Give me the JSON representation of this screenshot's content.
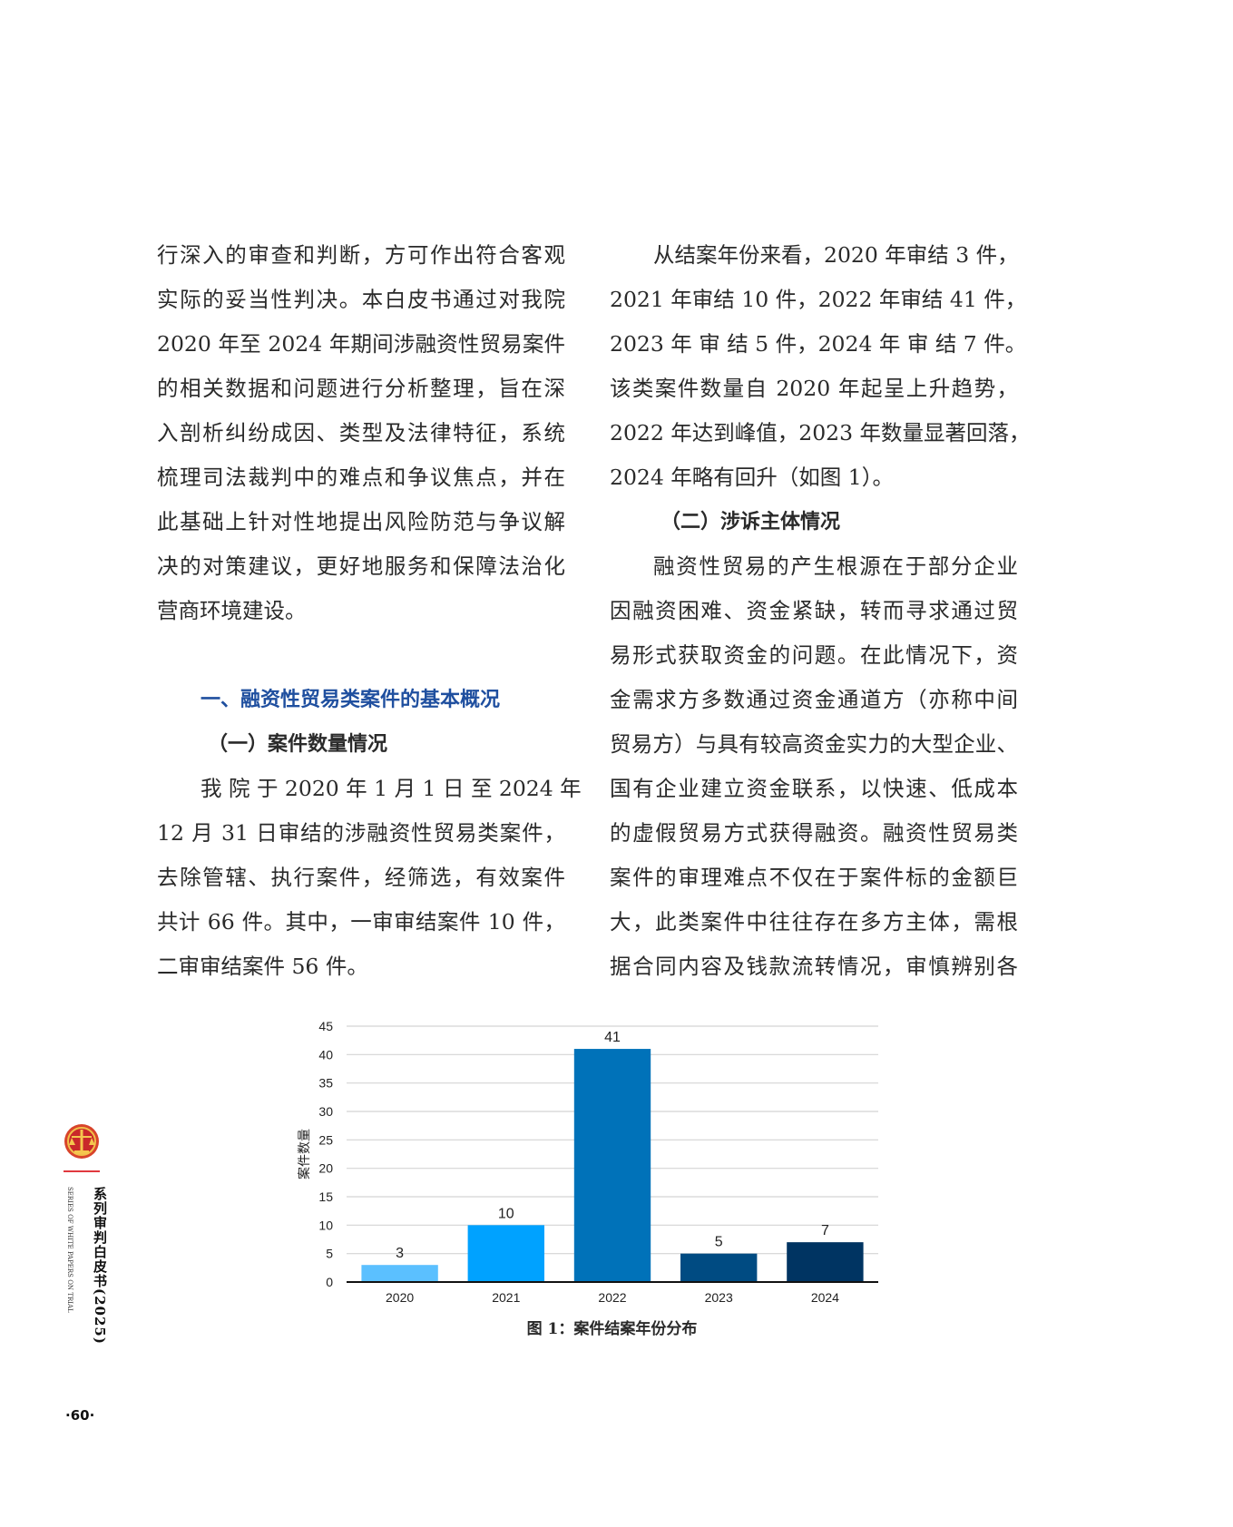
{
  "left_column": {
    "intro_lines": [
      "行深入的审查和判断，方可作出符合客观",
      "实际的妥当性判决。本白皮书通过对我院",
      "2020 年至 2024 年期间涉融资性贸易案件",
      "的相关数据和问题进行分析整理，旨在深",
      "入剖析纠纷成因、类型及法律特征，系统",
      "梳理司法裁判中的难点和争议焦点，并在",
      "此基础上针对性地提出风险防范与争议解",
      "决的对策建议，更好地服务和保障法治化",
      "营商环境建设。"
    ],
    "section_heading": "一、融资性贸易类案件的基本概况",
    "subheading": "（一）案件数量情况",
    "para_lines": [
      "我 院 于 2020 年 1 月 1 日 至 2024 年",
      "12 月 31 日审结的涉融资性贸易类案件，",
      "去除管辖、执行案件，经筛选，有效案件",
      "共计 66 件。其中，一审审结案件 10 件，",
      "二审审结案件 56 件。"
    ]
  },
  "right_column": {
    "para1_lines": [
      "从结案年份来看，2020 年审结 3 件，",
      "2021 年审结 10 件，2022 年审结 41 件，",
      "2023 年 审 结 5 件，2024 年 审 结 7 件。",
      "该类案件数量自 2020 年起呈上升趋势，",
      "2022 年达到峰值，2023 年数量显著回落，",
      "2024 年略有回升（如图 1）。"
    ],
    "subheading": "（二）涉诉主体情况",
    "para2_lines": [
      "融资性贸易的产生根源在于部分企业",
      "因融资困难、资金紧缺，转而寻求通过贸",
      "易形式获取资金的问题。在此情况下，资",
      "金需求方多数通过资金通道方（亦称中间",
      "贸易方）与具有较高资金实力的大型企业、",
      "国有企业建立资金联系，以快速、低成本",
      "的虚假贸易方式获得融资。融资性贸易类",
      "案件的审理难点不仅在于案件标的金额巨",
      "大，此类案件中往往存在多方主体，需根",
      "据合同内容及钱款流转情况，审慎辨别各"
    ]
  },
  "chart_data": {
    "type": "bar",
    "categories": [
      "2020",
      "2021",
      "2022",
      "2023",
      "2024"
    ],
    "values": [
      3,
      10,
      41,
      5,
      7
    ],
    "data_labels": [
      "3",
      "10",
      "41",
      "5",
      "7"
    ],
    "bar_colors": [
      "#5bc0ff",
      "#00a2ff",
      "#0072b9",
      "#004b82",
      "#003462"
    ],
    "title": "",
    "xlabel": "",
    "ylabel": "案件数量",
    "ylim": [
      0,
      45
    ],
    "yticks": [
      "0",
      "5",
      "10",
      "15",
      "20",
      "25",
      "30",
      "35",
      "40",
      "45"
    ],
    "grid": true,
    "caption": "图 1：案件结案年份分布"
  },
  "sidebar": {
    "emblem_icon": "court-emblem-icon",
    "series_title": "系列审判白皮书(2025)",
    "series_subtitle_en": "SERIES OF WHITE PAPERS ON TRIAL",
    "accent_color": "#e0393e"
  },
  "page_number": "·60·",
  "colors": {
    "heading_blue": "#1f4f9f",
    "text": "#2a2a2a"
  }
}
